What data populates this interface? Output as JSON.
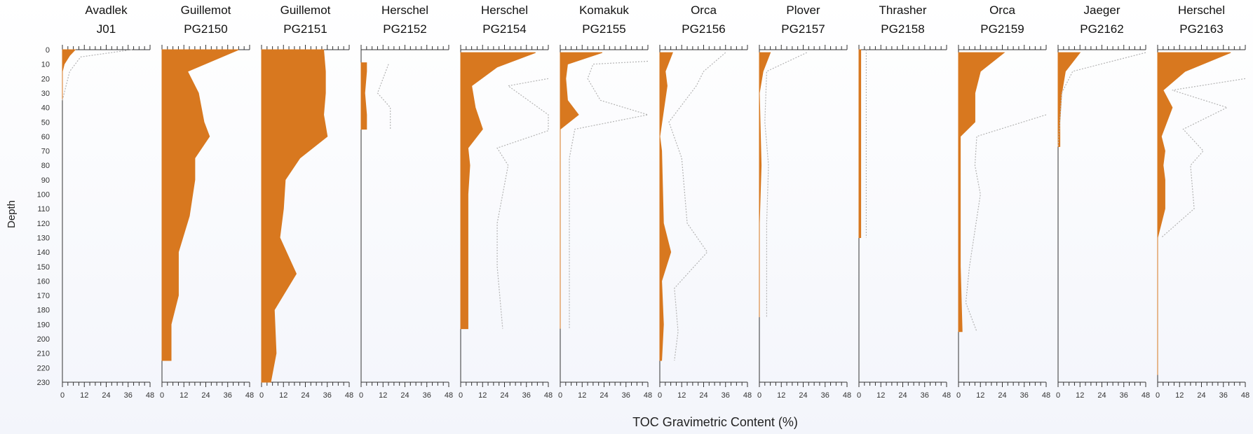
{
  "chart_data": {
    "type": "area",
    "xlabel": "TOC Gravimetric Content (%)",
    "ylabel": "Depth",
    "xlim": [
      0,
      48
    ],
    "ylim": [
      0,
      230
    ],
    "x_ticks": [
      0,
      12,
      24,
      36,
      48
    ],
    "y_ticks": [
      0,
      10,
      20,
      30,
      40,
      50,
      60,
      70,
      80,
      90,
      100,
      110,
      120,
      130,
      140,
      150,
      160,
      170,
      180,
      190,
      200,
      210,
      220,
      230
    ],
    "colors": {
      "fill": "#d8781f",
      "dotted": "#b4b4b4",
      "axis": "#333333"
    },
    "panels": [
      {
        "site": "Avadlek",
        "core": "J01",
        "fill": [
          [
            0,
            7
          ],
          [
            4,
            4
          ],
          [
            10,
            1
          ],
          [
            15,
            0
          ],
          [
            20,
            0
          ],
          [
            25,
            0
          ],
          [
            30,
            0
          ],
          [
            35,
            0
          ]
        ],
        "dotted": [
          [
            0,
            38
          ],
          [
            5,
            10
          ],
          [
            15,
            4
          ],
          [
            25,
            2
          ],
          [
            35,
            0
          ]
        ]
      },
      {
        "site": "Guillemot",
        "core": "PG2150",
        "fill": [
          [
            0,
            42
          ],
          [
            15,
            14
          ],
          [
            30,
            20
          ],
          [
            50,
            23
          ],
          [
            60,
            26
          ],
          [
            75,
            18
          ],
          [
            90,
            18
          ],
          [
            115,
            15
          ],
          [
            140,
            9
          ],
          [
            160,
            9
          ],
          [
            170,
            9
          ],
          [
            190,
            5
          ],
          [
            215,
            5
          ]
        ],
        "dotted": []
      },
      {
        "site": "Guillemot",
        "core": "PG2151",
        "fill": [
          [
            0,
            34
          ],
          [
            15,
            35
          ],
          [
            30,
            35
          ],
          [
            45,
            34
          ],
          [
            60,
            36
          ],
          [
            75,
            21
          ],
          [
            90,
            13
          ],
          [
            110,
            12
          ],
          [
            130,
            10
          ],
          [
            155,
            19
          ],
          [
            180,
            7
          ],
          [
            210,
            8
          ],
          [
            230,
            5
          ]
        ],
        "dotted": []
      },
      {
        "site": "Herschel",
        "core": "PG2152",
        "fill": [
          [
            9,
            3
          ],
          [
            15,
            3
          ],
          [
            30,
            2
          ],
          [
            45,
            3
          ],
          [
            55,
            3
          ]
        ],
        "dotted": [
          [
            10,
            15
          ],
          [
            20,
            12
          ],
          [
            30,
            9
          ],
          [
            40,
            16
          ],
          [
            55,
            16
          ]
        ]
      },
      {
        "site": "Herschel",
        "core": "PG2154",
        "fill": [
          [
            2,
            41
          ],
          [
            12,
            20
          ],
          [
            25,
            6
          ],
          [
            40,
            8
          ],
          [
            55,
            12
          ],
          [
            68,
            4
          ],
          [
            80,
            5
          ],
          [
            100,
            4
          ],
          [
            140,
            4
          ],
          [
            160,
            4
          ],
          [
            193,
            4
          ]
        ],
        "dotted": [
          [
            20,
            48
          ],
          [
            25,
            26
          ],
          [
            45,
            48
          ],
          [
            56,
            48
          ],
          [
            68,
            20
          ],
          [
            80,
            26
          ],
          [
            120,
            20
          ],
          [
            150,
            20
          ],
          [
            193,
            23
          ]
        ]
      },
      {
        "site": "Komakuk",
        "core": "PG2155",
        "fill": [
          [
            2,
            23
          ],
          [
            10,
            4
          ],
          [
            20,
            3
          ],
          [
            35,
            4
          ],
          [
            45,
            10
          ],
          [
            55,
            0
          ],
          [
            75,
            0
          ],
          [
            130,
            0
          ],
          [
            193,
            0
          ]
        ],
        "dotted": [
          [
            8,
            48
          ],
          [
            10,
            18
          ],
          [
            20,
            15
          ],
          [
            35,
            22
          ],
          [
            45,
            48
          ],
          [
            55,
            8
          ],
          [
            75,
            5
          ],
          [
            130,
            5
          ],
          [
            193,
            5
          ]
        ]
      },
      {
        "site": "Orca",
        "core": "PG2156",
        "fill": [
          [
            2,
            7
          ],
          [
            15,
            3
          ],
          [
            25,
            4
          ],
          [
            60,
            0
          ],
          [
            70,
            1
          ],
          [
            120,
            2
          ],
          [
            140,
            6
          ],
          [
            160,
            1
          ],
          [
            190,
            2
          ],
          [
            215,
            1
          ]
        ],
        "dotted": [
          [
            2,
            36
          ],
          [
            15,
            24
          ],
          [
            25,
            20
          ],
          [
            50,
            5
          ],
          [
            75,
            12
          ],
          [
            120,
            15
          ],
          [
            140,
            26
          ],
          [
            165,
            8
          ],
          [
            195,
            10
          ],
          [
            215,
            8
          ]
        ]
      },
      {
        "site": "Plover",
        "core": "PG2157",
        "fill": [
          [
            2,
            6
          ],
          [
            15,
            2
          ],
          [
            30,
            0
          ],
          [
            80,
            1
          ],
          [
            120,
            0
          ],
          [
            185,
            0
          ]
        ],
        "dotted": [
          [
            2,
            26
          ],
          [
            15,
            4
          ],
          [
            50,
            3
          ],
          [
            80,
            5
          ],
          [
            120,
            4
          ],
          [
            185,
            4
          ]
        ]
      },
      {
        "site": "Thrasher",
        "core": "PG2158",
        "fill": [
          [
            0,
            1
          ],
          [
            130,
            1
          ]
        ],
        "dotted": [
          [
            0,
            4
          ],
          [
            60,
            4
          ],
          [
            130,
            4
          ]
        ]
      },
      {
        "site": "Orca",
        "core": "PG2159",
        "fill": [
          [
            2,
            25
          ],
          [
            15,
            12
          ],
          [
            30,
            9
          ],
          [
            50,
            9
          ],
          [
            60,
            1
          ],
          [
            80,
            1
          ],
          [
            120,
            1
          ],
          [
            150,
            1
          ],
          [
            195,
            2
          ]
        ],
        "dotted": [
          [
            45,
            48
          ],
          [
            60,
            10
          ],
          [
            80,
            9
          ],
          [
            100,
            12
          ],
          [
            150,
            6
          ],
          [
            175,
            4
          ],
          [
            195,
            10
          ]
        ]
      },
      {
        "site": "Jaeger",
        "core": "PG2162",
        "fill": [
          [
            2,
            12
          ],
          [
            15,
            4
          ],
          [
            30,
            2
          ],
          [
            50,
            1
          ],
          [
            67,
            1
          ]
        ],
        "dotted": [
          [
            2,
            48
          ],
          [
            15,
            8
          ],
          [
            30,
            2
          ],
          [
            50,
            1
          ],
          [
            67,
            0
          ]
        ]
      },
      {
        "site": "Herschel",
        "core": "PG2163",
        "fill": [
          [
            2,
            40
          ],
          [
            15,
            15
          ],
          [
            28,
            3
          ],
          [
            40,
            8
          ],
          [
            60,
            2
          ],
          [
            70,
            4
          ],
          [
            80,
            3
          ],
          [
            90,
            4
          ],
          [
            110,
            4
          ],
          [
            130,
            0
          ],
          [
            150,
            0
          ],
          [
            200,
            0
          ],
          [
            225,
            0
          ]
        ],
        "dotted": [
          [
            20,
            48
          ],
          [
            28,
            8
          ],
          [
            40,
            38
          ],
          [
            55,
            14
          ],
          [
            70,
            25
          ],
          [
            80,
            18
          ],
          [
            110,
            20
          ],
          [
            130,
            2
          ]
        ]
      }
    ]
  }
}
